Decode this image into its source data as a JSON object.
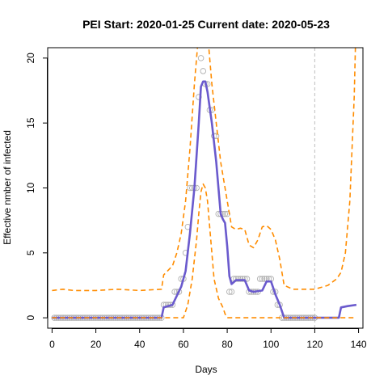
{
  "chart_data": {
    "type": "line",
    "title": "PEI Start:  2020-01-25   Current date:  2020-05-23",
    "xlabel": "Days",
    "ylabel": "Effective nmber of infected",
    "xlim": [
      -2,
      142
    ],
    "ylim": [
      -0.8,
      20.8
    ],
    "xticks": [
      0,
      20,
      40,
      60,
      80,
      100,
      120,
      140
    ],
    "yticks": [
      0,
      5,
      10,
      15,
      20
    ],
    "current_day": 120,
    "colors": {
      "estimate": "#6a5acd",
      "interval": "#ff8c00",
      "observed": "#b0b0b0",
      "current_day_line": "#c8c8c8"
    },
    "series": [
      {
        "role": "observed",
        "style": "points",
        "x": [
          1,
          2,
          3,
          4,
          5,
          6,
          7,
          8,
          9,
          10,
          11,
          12,
          13,
          14,
          15,
          16,
          17,
          18,
          19,
          20,
          21,
          22,
          23,
          24,
          25,
          26,
          27,
          28,
          29,
          30,
          31,
          32,
          33,
          34,
          35,
          36,
          37,
          38,
          39,
          40,
          41,
          42,
          43,
          44,
          45,
          46,
          47,
          48,
          49,
          50,
          51,
          52,
          53,
          54,
          55,
          56,
          57,
          58,
          59,
          60,
          61,
          62,
          63,
          64,
          65,
          66,
          67,
          68,
          69,
          70,
          71,
          72,
          73,
          74,
          75,
          76,
          77,
          78,
          79,
          80,
          81,
          82,
          83,
          84,
          85,
          86,
          87,
          88,
          89,
          90,
          91,
          92,
          93,
          94,
          95,
          96,
          97,
          98,
          99,
          100,
          101,
          102,
          103,
          104,
          105,
          106,
          107,
          108,
          109,
          110,
          111,
          112,
          113,
          114,
          115,
          116,
          117,
          118,
          119,
          120
        ],
        "y": [
          0,
          0,
          0,
          0,
          0,
          0,
          0,
          0,
          0,
          0,
          0,
          0,
          0,
          0,
          0,
          0,
          0,
          0,
          0,
          0,
          0,
          0,
          0,
          0,
          0,
          0,
          0,
          0,
          0,
          0,
          0,
          0,
          0,
          0,
          0,
          0,
          0,
          0,
          0,
          0,
          0,
          0,
          0,
          0,
          0,
          0,
          0,
          0,
          0,
          0,
          1,
          1,
          1,
          1,
          1,
          2,
          2,
          2,
          3,
          3,
          5,
          7,
          10,
          10,
          10,
          10,
          17,
          20,
          19,
          18,
          18,
          16,
          16,
          14,
          14,
          8,
          8,
          8,
          8,
          8,
          2,
          2,
          3,
          3,
          3,
          3,
          3,
          3,
          3,
          2,
          2,
          2,
          2,
          2,
          3,
          3,
          3,
          3,
          3,
          3,
          2,
          2,
          1,
          1,
          0,
          0,
          0,
          0,
          0,
          0,
          0,
          0,
          0,
          0,
          0,
          0,
          0,
          0,
          0,
          0
        ]
      },
      {
        "role": "estimate",
        "style": "solid",
        "x": [
          0,
          50,
          51,
          55,
          57,
          59,
          61,
          63,
          65,
          67,
          68,
          69,
          70,
          71,
          73,
          75,
          77,
          78,
          79,
          80,
          81,
          82,
          84,
          88,
          90,
          92,
          96,
          98,
          100,
          101,
          102,
          104,
          105,
          106,
          130,
          131,
          132,
          135,
          139
        ],
        "y": [
          0,
          0,
          0.8,
          1.0,
          1.7,
          2.4,
          3.6,
          6.5,
          10.0,
          15.0,
          17.8,
          18.2,
          18.2,
          17.4,
          15.0,
          12.0,
          8.0,
          7.6,
          7.3,
          5.5,
          3.2,
          2.6,
          2.9,
          2.9,
          2.1,
          2.0,
          2.1,
          2.8,
          2.8,
          2.3,
          1.8,
          1.0,
          0.5,
          0,
          0,
          0,
          0.8,
          0.9,
          1.0
        ]
      },
      {
        "role": "upper",
        "style": "dashed",
        "x": [
          0,
          5,
          10,
          20,
          30,
          40,
          50,
          51,
          55,
          57,
          59,
          61,
          63,
          65,
          67,
          69,
          70,
          71,
          73,
          75,
          77,
          79,
          81,
          82,
          84,
          86,
          88,
          90,
          92,
          94,
          96,
          98,
          100,
          102,
          104,
          106,
          110,
          120,
          126,
          130,
          132,
          134,
          136,
          138,
          139
        ],
        "y": [
          2.1,
          2.2,
          2.1,
          2.1,
          2.2,
          2.1,
          2.2,
          3.3,
          4.0,
          5.0,
          6.5,
          9.0,
          13.0,
          18.0,
          22.0,
          24.0,
          24.0,
          22.0,
          18.0,
          15.0,
          12.0,
          10.0,
          8.0,
          7.0,
          6.8,
          6.9,
          6.8,
          5.6,
          5.4,
          6.0,
          7.0,
          7.1,
          6.8,
          6.0,
          4.5,
          2.5,
          2.2,
          2.2,
          2.5,
          3.0,
          3.5,
          5.0,
          9.0,
          17.0,
          24.0
        ]
      },
      {
        "role": "lower",
        "style": "dashed",
        "x": [
          0,
          50,
          60,
          62,
          64,
          66,
          67,
          68,
          69,
          70,
          71,
          72,
          73,
          74,
          76,
          78,
          79,
          80,
          81,
          139
        ],
        "y": [
          0,
          0,
          0,
          1.0,
          3.0,
          6.0,
          8.0,
          9.7,
          10.3,
          10.0,
          9.0,
          7.0,
          5.0,
          3.0,
          1.5,
          0.8,
          0.3,
          0,
          0,
          0
        ]
      }
    ]
  }
}
